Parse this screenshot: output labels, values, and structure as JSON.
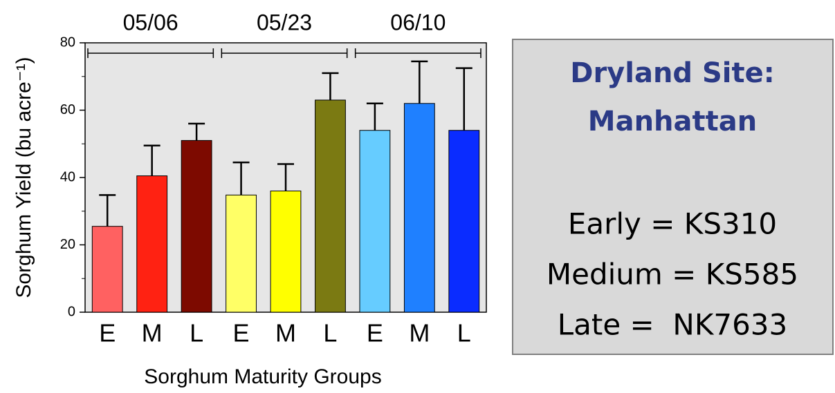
{
  "chart_data": {
    "type": "bar",
    "y_label": "Sorghum Yield (bu acre⁻¹)",
    "x_label": "Sorghum Maturity Groups",
    "groups": [
      "05/06",
      "05/23",
      "06/10"
    ],
    "categories": [
      "E",
      "M",
      "L",
      "E",
      "M",
      "L",
      "E",
      "M",
      "L"
    ],
    "values": [
      25.5,
      40.5,
      51,
      34.8,
      36,
      63,
      54,
      62,
      54
    ],
    "errors": [
      9.3,
      9,
      5,
      9.7,
      8,
      8,
      8,
      12.5,
      18.5
    ],
    "colors": [
      "#ff6161",
      "#ff2212",
      "#7d0a00",
      "#ffff66",
      "#ffff00",
      "#7b7a12",
      "#66ccff",
      "#1f80ff",
      "#0a2cff"
    ],
    "ylim": [
      0,
      80
    ],
    "yticks": [
      0,
      20,
      40,
      60,
      80
    ]
  },
  "info_box": {
    "title": [
      "Dryland Site:",
      "Manhattan"
    ],
    "lines": [
      "Early = KS310",
      "Medium = KS585",
      "Late =  NK7633"
    ]
  }
}
